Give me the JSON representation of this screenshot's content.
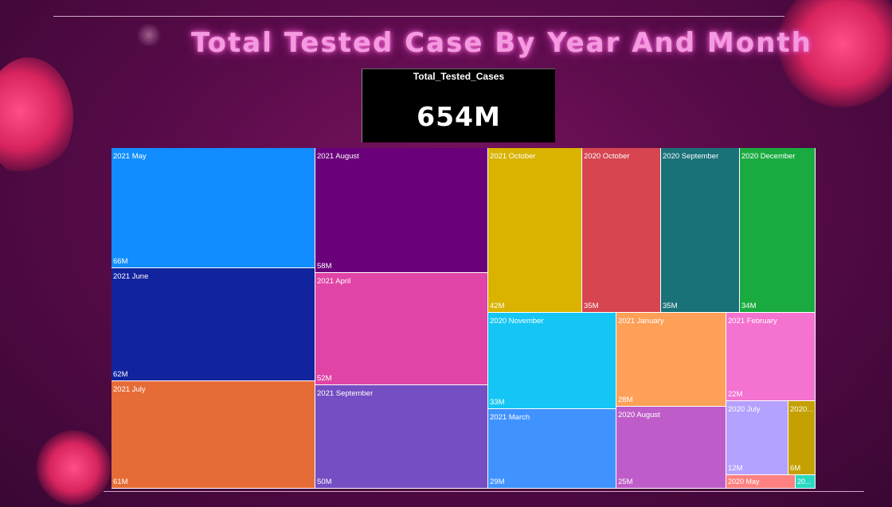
{
  "page_title": "Total Tested Case By Year And Month",
  "kpi_card": {
    "label": "Total_Tested_Cases",
    "value": "654M"
  },
  "colors": {
    "background": "#5a0b4a",
    "title": "#f49ae0"
  },
  "chart_data": {
    "type": "treemap",
    "title": "Total Tested Case By Year And Month",
    "unit": "M",
    "items": [
      {
        "label": "2021 May",
        "display_value": "66M",
        "value": 66,
        "color": "#118dff"
      },
      {
        "label": "2021 June",
        "display_value": "62M",
        "value": 62,
        "color": "#12239e"
      },
      {
        "label": "2021 July",
        "display_value": "61M",
        "value": 61,
        "color": "#e66c37"
      },
      {
        "label": "2021 August",
        "display_value": "58M",
        "value": 58,
        "color": "#6b007b"
      },
      {
        "label": "2021 April",
        "display_value": "52M",
        "value": 52,
        "color": "#e044a7"
      },
      {
        "label": "2021 September",
        "display_value": "50M",
        "value": 50,
        "color": "#744ec2"
      },
      {
        "label": "2021 October",
        "display_value": "42M",
        "value": 42,
        "color": "#d9b300"
      },
      {
        "label": "2020 October",
        "display_value": "35M",
        "value": 35,
        "color": "#d64550"
      },
      {
        "label": "2020 September",
        "display_value": "35M",
        "value": 35,
        "color": "#197278"
      },
      {
        "label": "2020 December",
        "display_value": "34M",
        "value": 34,
        "color": "#1aab40"
      },
      {
        "label": "2020 November",
        "display_value": "33M",
        "value": 33,
        "color": "#15c6f4"
      },
      {
        "label": "2021 March",
        "display_value": "29M",
        "value": 29,
        "color": "#4092ff"
      },
      {
        "label": "2021 January",
        "display_value": "28M",
        "value": 28,
        "color": "#ffa058"
      },
      {
        "label": "2020 August",
        "display_value": "25M",
        "value": 25,
        "color": "#be5dc9"
      },
      {
        "label": "2021 February",
        "display_value": "22M",
        "value": 22,
        "color": "#f472d0"
      },
      {
        "label": "2020 July",
        "display_value": "12M",
        "value": 12,
        "color": "#b5a1ff"
      },
      {
        "label": "2020...",
        "display_value": "6M",
        "value": 6,
        "color": "#c4a000"
      },
      {
        "label": "2020 May",
        "display_value": "",
        "value": 2,
        "color": "#ff8080"
      },
      {
        "label": "20...",
        "display_value": "",
        "value": 1,
        "color": "#2bd9c0"
      }
    ]
  }
}
